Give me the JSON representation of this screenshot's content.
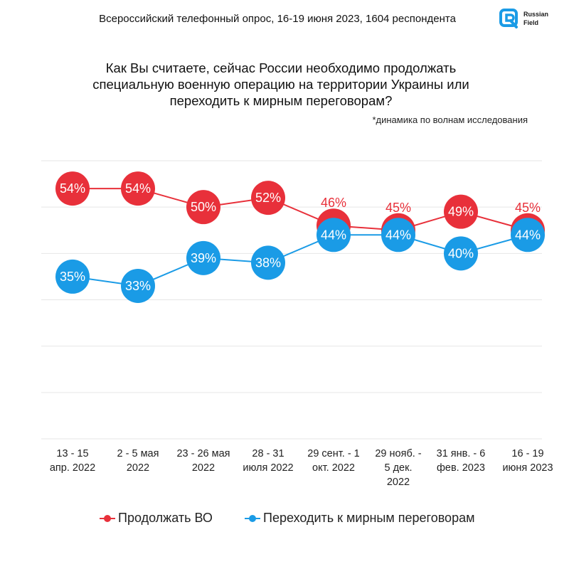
{
  "header": {
    "survey_text": "Всероссийский телефонный опрос, 16-19 июня 2023, 1604 респондента",
    "logo_text_line1": "Russian",
    "logo_text_line2": "Field",
    "logo_color": "#1a9be6"
  },
  "question": {
    "line1": "Как Вы считаете, сейчас России необходимо продолжать",
    "line2": "специальную военную операцию на территории Украины или",
    "line3": "переходить к мирным переговорам?",
    "note": "*динамика по волнам исследования"
  },
  "legend": {
    "item1": "Продолжать ВО",
    "item2": "Переходить к мирным переговорам"
  },
  "colors": {
    "red": "#e8303a",
    "blue": "#1a9be6",
    "grid": "#e6e6e6"
  },
  "chart_data": {
    "type": "line",
    "categories": [
      [
        "13 - 15",
        "апр. 2022"
      ],
      [
        "2 - 5 мая",
        "2022"
      ],
      [
        "23 - 26 мая",
        "2022"
      ],
      [
        "28 - 31",
        "июля 2022"
      ],
      [
        "29 сент. - 1",
        "окт. 2022"
      ],
      [
        "29 нояб. -",
        "5 дек.",
        "2022"
      ],
      [
        "31 янв. - 6",
        "фев. 2023"
      ],
      [
        "16 - 19",
        "июня 2023"
      ]
    ],
    "series": [
      {
        "name": "Продолжать ВО",
        "color": "#e8303a",
        "values": [
          54,
          54,
          50,
          52,
          46,
          45,
          49,
          45
        ],
        "labels": [
          "54%",
          "54%",
          "50%",
          "52%",
          "46%",
          "45%",
          "49%",
          "45%"
        ]
      },
      {
        "name": "Переходить к мирным переговорам",
        "color": "#1a9be6",
        "values": [
          35,
          33,
          39,
          38,
          44,
          44,
          40,
          44
        ],
        "labels": [
          "35%",
          "33%",
          "39%",
          "38%",
          "44%",
          "44%",
          "40%",
          "44%"
        ]
      }
    ],
    "ylim": [
      0,
      60
    ],
    "grid": true,
    "legend_position": "bottom"
  }
}
